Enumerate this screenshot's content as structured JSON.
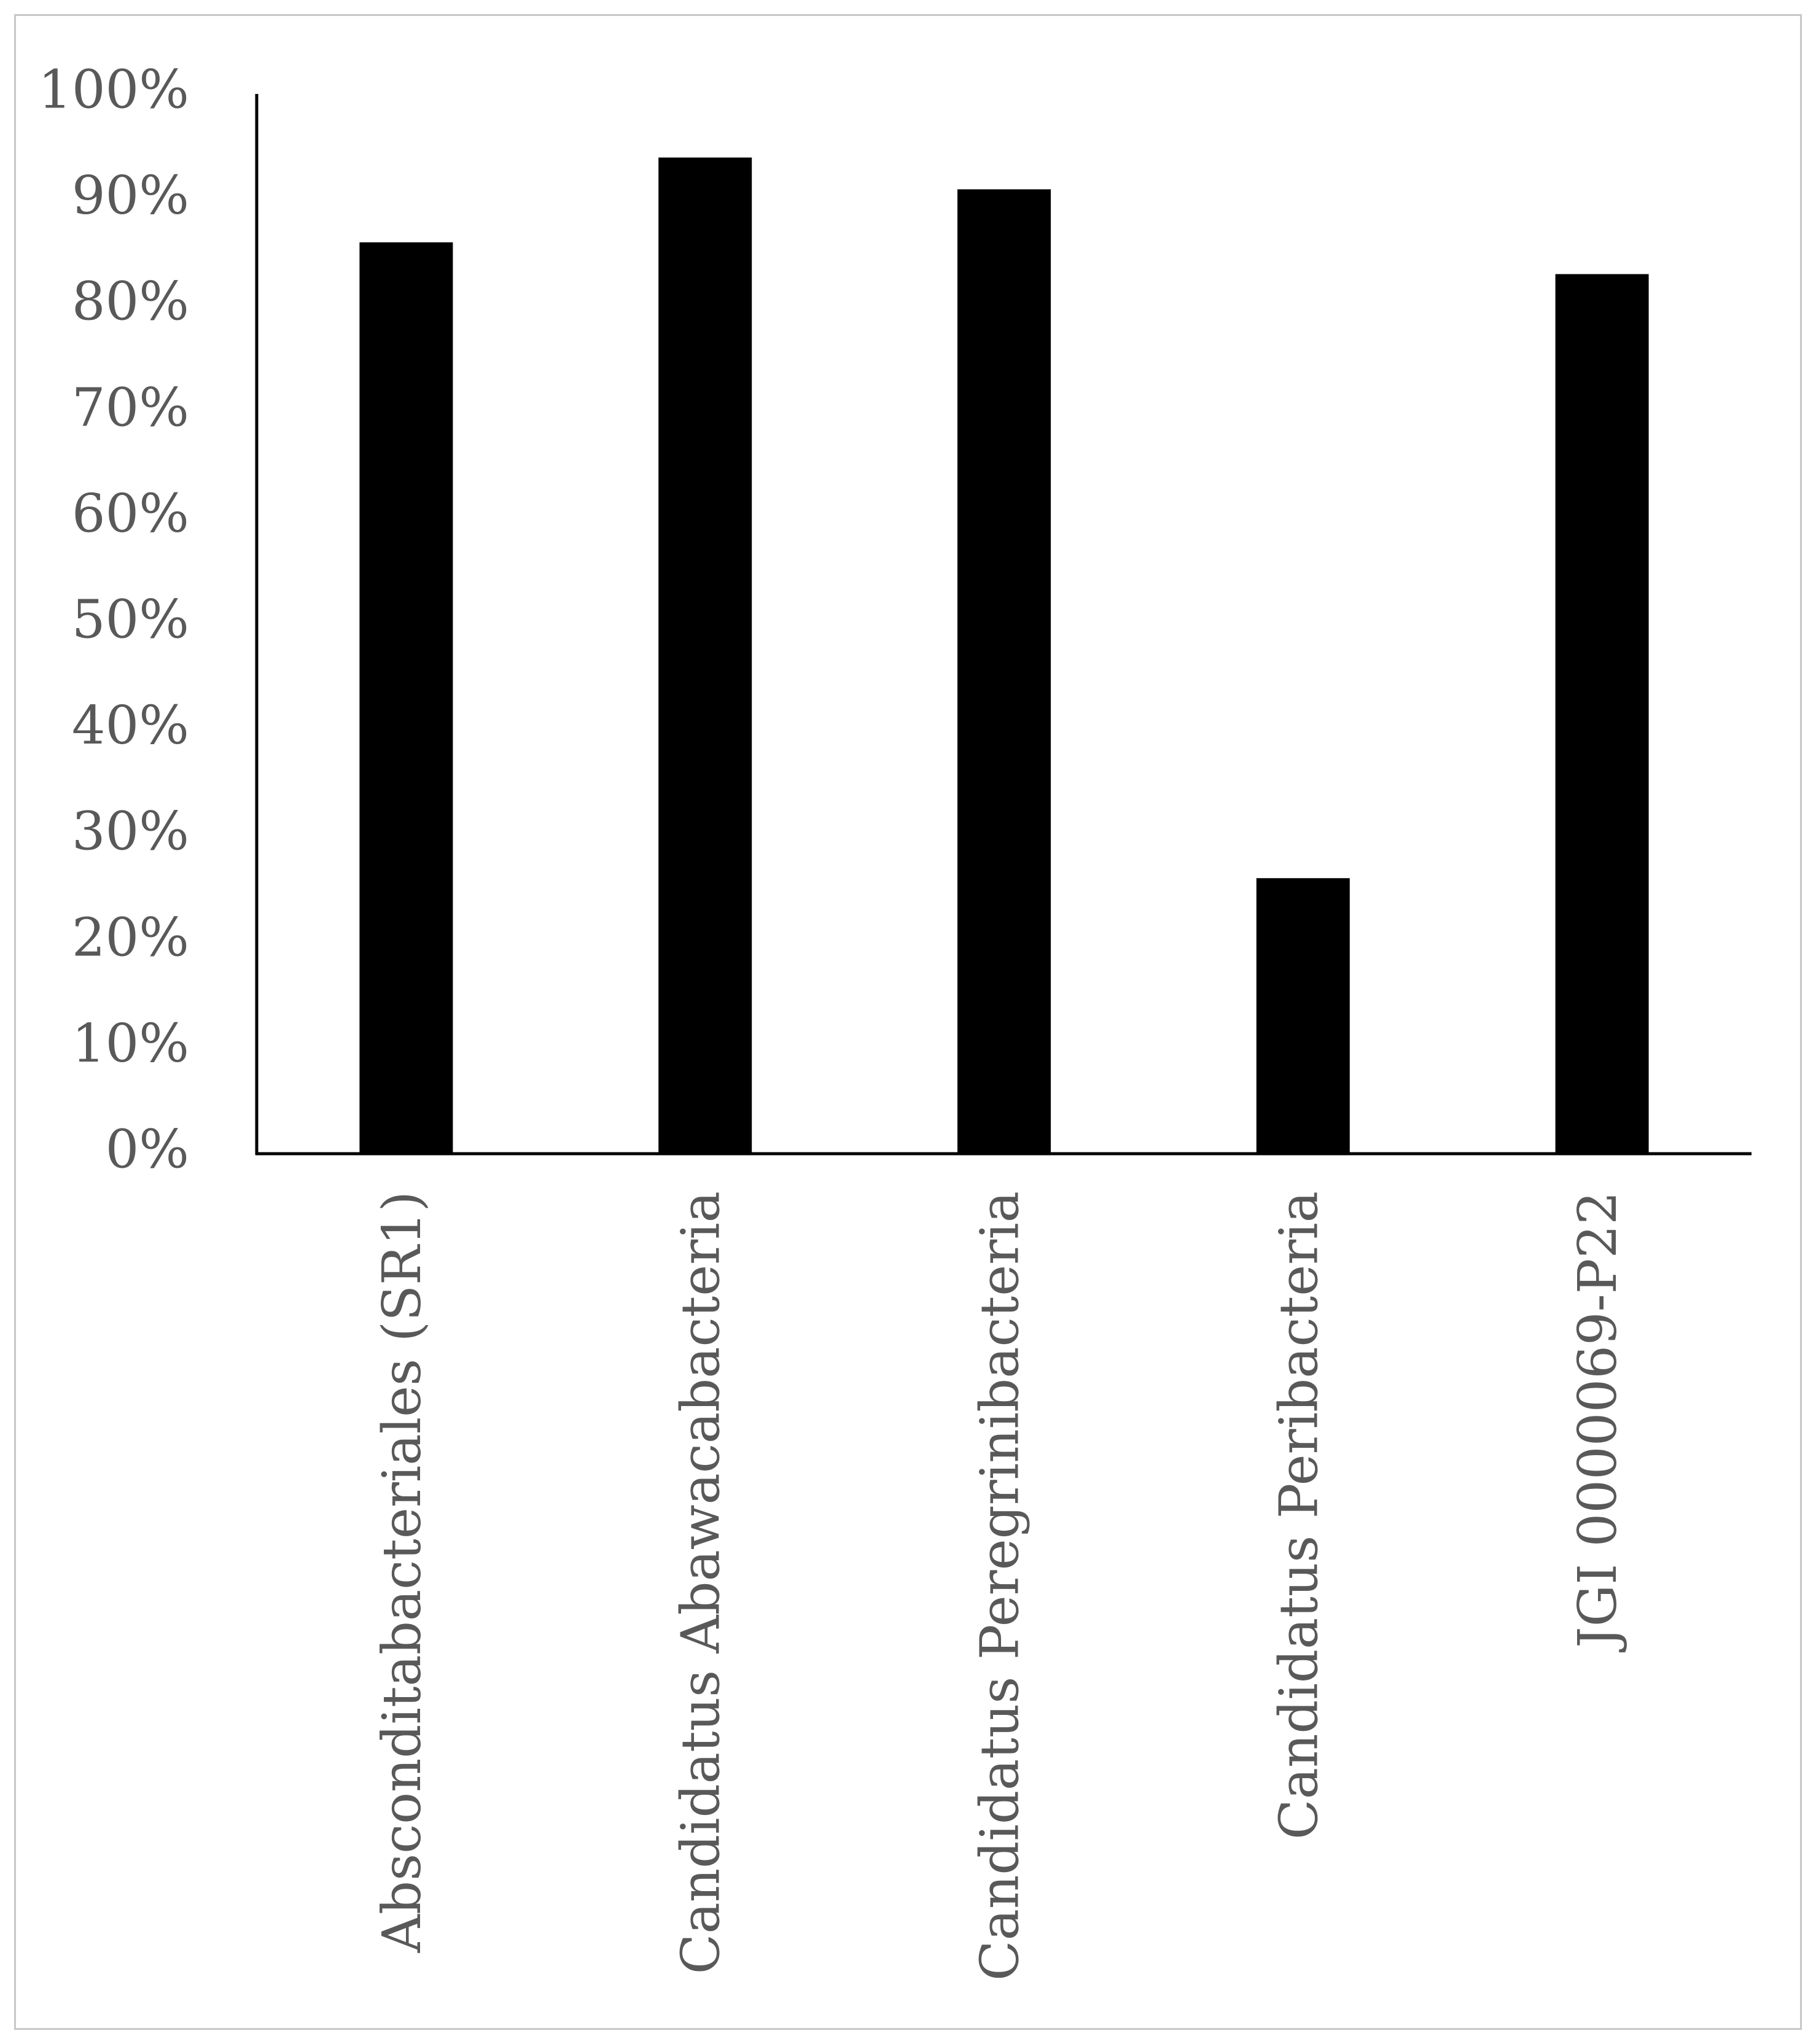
{
  "chart_data": {
    "type": "bar",
    "title": "",
    "xlabel": "",
    "ylabel": "",
    "categories": [
      "Absconditabacteriales (SR1)",
      "Candidatus Abawacabacteria",
      "Candidatus Peregrinibacteria",
      "Candidatus Peribacteria",
      "JGI 0000069-P22"
    ],
    "values": [
      86,
      94,
      91,
      26,
      83
    ],
    "value_unit": "%",
    "ylim": [
      0,
      100
    ],
    "yticks": [
      "0%",
      "10%",
      "20%",
      "30%",
      "40%",
      "50%",
      "60%",
      "70%",
      "80%",
      "90%",
      "100%"
    ],
    "bar_color": "#000000",
    "grid": false,
    "legend": "none"
  }
}
